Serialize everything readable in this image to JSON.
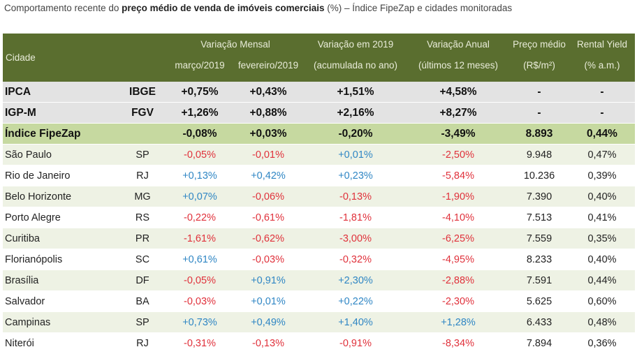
{
  "caption": {
    "prefix": "Comportamento recente do ",
    "bold": "preço médio de venda de imóveis comerciais",
    "suffix": " (%) – Índice FipeZap e cidades monitoradas"
  },
  "header": {
    "cidade": "Cidade",
    "var_mensal": "Variação Mensal",
    "marco": "março/2019",
    "fevereiro": "fevereiro/2019",
    "var_2019": "Variação em 2019",
    "acumulada": "(acumulada no ano)",
    "var_anual": "Variação Anual",
    "ultimos": "(últimos 12 meses)",
    "preco": "Preço médio",
    "preco_unit": "(R$/m²)",
    "yield": "Rental Yield",
    "yield_unit": "(% a.m.)"
  },
  "indices": [
    {
      "name": "IPCA",
      "source": "IBGE",
      "mar": "+0,75%",
      "fev": "+0,43%",
      "ano": "+1,51%",
      "anual": "+4,58%",
      "preco": "-",
      "yield": "-"
    },
    {
      "name": "IGP-M",
      "source": "FGV",
      "mar": "+1,26%",
      "fev": "+0,88%",
      "ano": "+2,16%",
      "anual": "+8,27%",
      "preco": "-",
      "yield": "-"
    }
  ],
  "fipezap": {
    "name": "Índice FipeZap",
    "source": "",
    "mar": "-0,08%",
    "fev": "+0,03%",
    "ano": "-0,20%",
    "anual": "-3,49%",
    "preco": "8.893",
    "yield": "0,44%"
  },
  "cities": [
    {
      "name": "São Paulo",
      "uf": "SP",
      "mar": "-0,05%",
      "fev": "-0,01%",
      "ano": "+0,01%",
      "anual": "-2,50%",
      "preco": "9.948",
      "yield": "0,47%"
    },
    {
      "name": "Rio de Janeiro",
      "uf": "RJ",
      "mar": "+0,13%",
      "fev": "+0,42%",
      "ano": "+0,23%",
      "anual": "-5,84%",
      "preco": "10.236",
      "yield": "0,39%"
    },
    {
      "name": "Belo Horizonte",
      "uf": "MG",
      "mar": "+0,07%",
      "fev": "-0,06%",
      "ano": "-0,13%",
      "anual": "-1,90%",
      "preco": "7.390",
      "yield": "0,40%"
    },
    {
      "name": "Porto Alegre",
      "uf": "RS",
      "mar": "-0,22%",
      "fev": "-0,61%",
      "ano": "-1,81%",
      "anual": "-4,10%",
      "preco": "7.513",
      "yield": "0,41%"
    },
    {
      "name": "Curitiba",
      "uf": "PR",
      "mar": "-1,61%",
      "fev": "-0,62%",
      "ano": "-3,00%",
      "anual": "-6,25%",
      "preco": "7.559",
      "yield": "0,35%"
    },
    {
      "name": "Florianópolis",
      "uf": "SC",
      "mar": "+0,61%",
      "fev": "-0,03%",
      "ano": "-0,32%",
      "anual": "-4,95%",
      "preco": "8.233",
      "yield": "0,40%"
    },
    {
      "name": "Brasília",
      "uf": "DF",
      "mar": "-0,05%",
      "fev": "+0,91%",
      "ano": "+2,30%",
      "anual": "-2,88%",
      "preco": "7.591",
      "yield": "0,44%"
    },
    {
      "name": "Salvador",
      "uf": "BA",
      "mar": "-0,03%",
      "fev": "+0,01%",
      "ano": "+0,22%",
      "anual": "-2,30%",
      "preco": "5.625",
      "yield": "0,60%"
    },
    {
      "name": "Campinas",
      "uf": "SP",
      "mar": "+0,73%",
      "fev": "+0,49%",
      "ano": "+1,40%",
      "anual": "+1,28%",
      "preco": "6.433",
      "yield": "0,48%"
    },
    {
      "name": "Niterói",
      "uf": "RJ",
      "mar": "-0,31%",
      "fev": "-0,13%",
      "ano": "-0,91%",
      "anual": "-8,34%",
      "preco": "7.894",
      "yield": "0,36%"
    }
  ],
  "colors": {
    "header_bg": "#5a6e2f",
    "fipezap_bg": "#c6d9a0",
    "index_bg": "#e3e3e3",
    "band_bg": "#eef2e4",
    "negative": "#e0313b",
    "positive": "#2f86c4"
  }
}
